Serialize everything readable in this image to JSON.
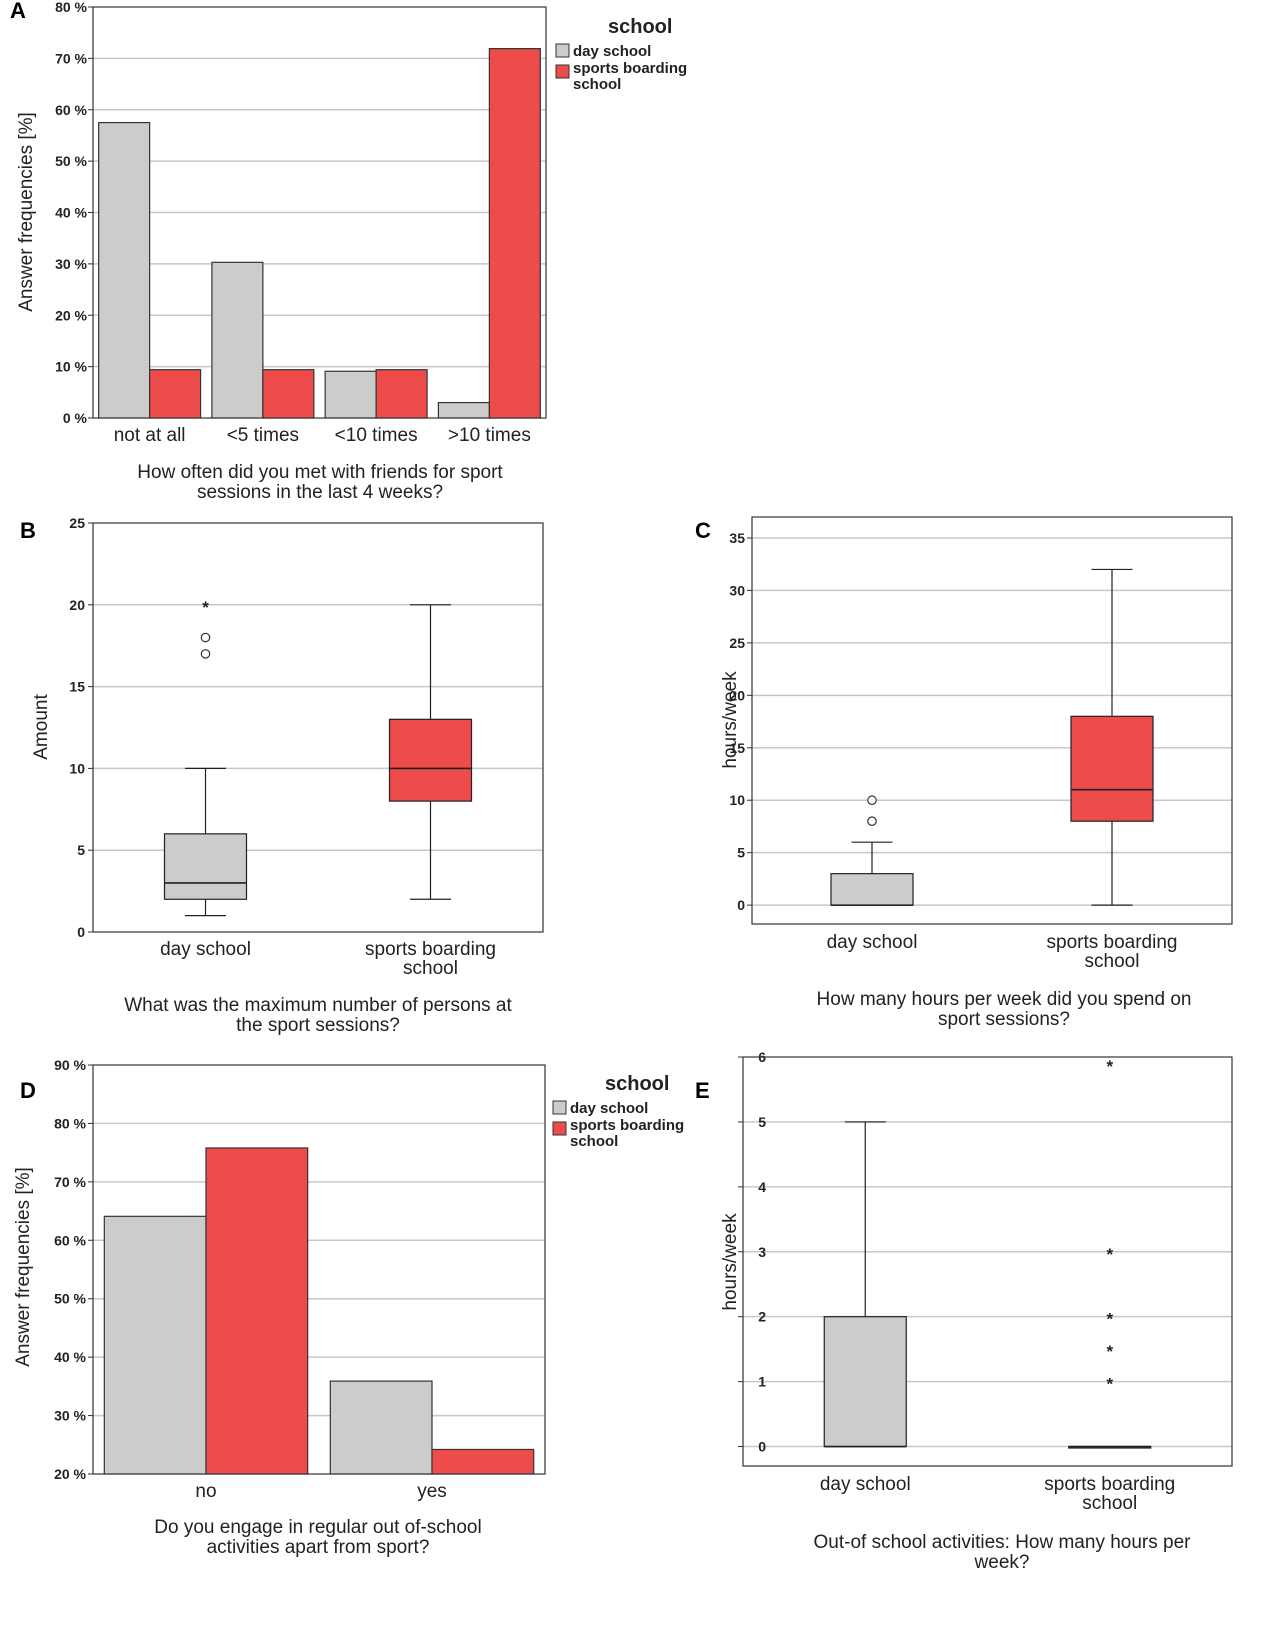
{
  "colors": {
    "day_school": "#cccccc",
    "sports_boarding_school": "#ee4b4b",
    "grid": "#c8c8c8",
    "outline": "#333333"
  },
  "chart_data": [
    {
      "panel": "A",
      "type": "bar",
      "title": "",
      "categories": [
        "not at all",
        "<5 times",
        "<10 times",
        ">10 times"
      ],
      "series": [
        {
          "name": "day school",
          "values": [
            57.5,
            30.3,
            9.1,
            3.0
          ]
        },
        {
          "name": "sports boarding school",
          "values": [
            9.4,
            9.4,
            9.4,
            71.9
          ]
        }
      ],
      "xlabel_lines": [
        "How often did you met with friends for sport",
        "sessions in the last 4 weeks?"
      ],
      "ylabel": "Answer frequencies [%]",
      "ylim": [
        0,
        80
      ],
      "yticks": [
        "0 %",
        "10 %",
        "20 %",
        "30 %",
        "40 %",
        "50 %",
        "60 %",
        "70 %",
        "80 %"
      ],
      "legend": {
        "title": "school",
        "entries": [
          "day school",
          "sports boarding",
          "school"
        ],
        "placement": "right"
      }
    },
    {
      "panel": "B",
      "type": "boxplot",
      "categories": [
        [
          "day school"
        ],
        [
          "sports boarding",
          "school"
        ]
      ],
      "boxes": [
        {
          "name": "day school",
          "min": 1,
          "q1": 2,
          "median": 3,
          "q3": 6,
          "max": 10,
          "outliers": [
            17,
            18
          ],
          "extremes": [
            20
          ]
        },
        {
          "name": "sports boarding school",
          "min": 2,
          "q1": 8,
          "median": 10,
          "q3": 13,
          "max": 20,
          "outliers": [],
          "extremes": []
        }
      ],
      "xlabel_lines": [
        "What was the maximum number of persons at",
        "the sport sessions?"
      ],
      "ylabel": "Amount",
      "ylim": [
        0,
        25
      ],
      "yticks": [
        "0",
        "5",
        "10",
        "15",
        "20",
        "25"
      ]
    },
    {
      "panel": "C",
      "type": "boxplot",
      "categories": [
        [
          "day school"
        ],
        [
          "sports boarding",
          "school"
        ]
      ],
      "boxes": [
        {
          "name": "day school",
          "min": 0,
          "q1": 0,
          "median": 0,
          "q3": 3,
          "max": 6,
          "outliers": [
            8,
            10
          ],
          "extremes": []
        },
        {
          "name": "sports boarding school",
          "min": 0,
          "q1": 8,
          "median": 11,
          "q3": 18,
          "max": 32,
          "outliers": [],
          "extremes": []
        }
      ],
      "xlabel_lines": [
        "How many hours per week did you spend on",
        "sport sessions?"
      ],
      "ylabel": "hours/week",
      "ylim": [
        -1.8,
        37
      ],
      "yticks": [
        "0",
        "5",
        "10",
        "15",
        "20",
        "25",
        "30",
        "35"
      ]
    },
    {
      "panel": "D",
      "type": "bar",
      "categories": [
        "no",
        "yes"
      ],
      "series": [
        {
          "name": "day school",
          "values": [
            64.1,
            35.9
          ]
        },
        {
          "name": "sports boarding school",
          "values": [
            75.8,
            24.2
          ]
        }
      ],
      "xlabel_lines": [
        "Do you engage in regular out of-school",
        "activities apart from sport?"
      ],
      "ylabel": "Answer frequencies [%]",
      "ylim": [
        20,
        90
      ],
      "yticks": [
        "20 %",
        "30 %",
        "40 %",
        "50 %",
        "60 %",
        "70 %",
        "80 %",
        "90 %"
      ],
      "legend": {
        "title": "school",
        "entries": [
          "day school",
          "sports boarding",
          "school"
        ],
        "placement": "right"
      }
    },
    {
      "panel": "E",
      "type": "boxplot",
      "categories": [
        [
          "day school"
        ],
        [
          "sports boarding",
          "school"
        ]
      ],
      "boxes": [
        {
          "name": "day school",
          "min": 0,
          "q1": 0,
          "median": 0,
          "q3": 2,
          "max": 5,
          "outliers": [],
          "extremes": []
        },
        {
          "name": "sports boarding school",
          "min": 0,
          "q1": 0,
          "median": 0,
          "q3": 0,
          "max": 0,
          "outliers": [],
          "extremes": [
            1,
            1.5,
            2,
            3,
            6
          ]
        }
      ],
      "xlabel_lines": [
        "Out-of school activities: How many hours per",
        "week?"
      ],
      "ylabel": "hours/week",
      "ylim": [
        -0.3,
        6
      ],
      "yticks": [
        "0",
        "1",
        "2",
        "3",
        "4",
        "5",
        "6"
      ]
    }
  ]
}
